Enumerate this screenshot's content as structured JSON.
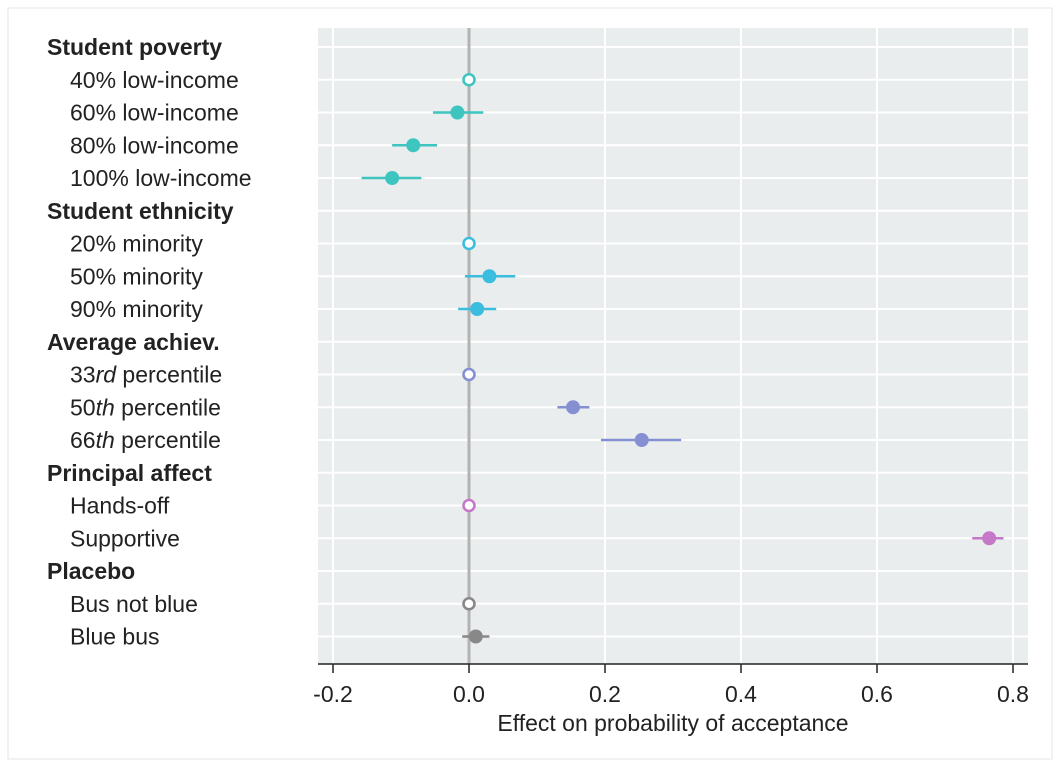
{
  "chart_data": {
    "type": "scatter",
    "xlabel": "Effect on probability of acceptance",
    "xlim": [
      -0.225,
      0.82
    ],
    "xticks": [
      "-0.2",
      "0.0",
      "0.2",
      "0.4",
      "0.6",
      "0.8"
    ],
    "xtick_values": [
      -0.2,
      0,
      0.2,
      0.4,
      0.6,
      0.8
    ],
    "grid": true,
    "reference_line": 0,
    "rows": [
      {
        "kind": "group",
        "label": "Student poverty"
      },
      {
        "kind": "item",
        "label": "40% low-income",
        "estimate": 0.0,
        "ci": [
          0.0,
          0.0
        ],
        "reference": true,
        "color": "#3ec5c0"
      },
      {
        "kind": "item",
        "label": "60% low-income",
        "estimate": -0.017,
        "ci": [
          -0.053,
          0.021
        ],
        "reference": false,
        "color": "#3ec5c0"
      },
      {
        "kind": "item",
        "label": "80% low-income",
        "estimate": -0.082,
        "ci": [
          -0.113,
          -0.047
        ],
        "reference": false,
        "color": "#3ec5c0"
      },
      {
        "kind": "item",
        "label": "100% low-income",
        "estimate": -0.113,
        "ci": [
          -0.158,
          -0.07
        ],
        "reference": false,
        "color": "#3ec5c0"
      },
      {
        "kind": "group",
        "label": "Student ethnicity"
      },
      {
        "kind": "item",
        "label": "20% minority",
        "estimate": 0.0,
        "ci": [
          0.0,
          0.0
        ],
        "reference": true,
        "color": "#3bbde0"
      },
      {
        "kind": "item",
        "label": "50% minority",
        "estimate": 0.03,
        "ci": [
          -0.006,
          0.068
        ],
        "reference": false,
        "color": "#3bbde0"
      },
      {
        "kind": "item",
        "label": "90% minority",
        "estimate": 0.012,
        "ci": [
          -0.016,
          0.04
        ],
        "reference": false,
        "color": "#3bbde0"
      },
      {
        "kind": "group",
        "label": "Average achiev."
      },
      {
        "kind": "item",
        "label_prefix": "33",
        "label_ital": "rd",
        "label_suffix": " percentile",
        "estimate": 0.0,
        "ci": [
          0.0,
          0.0
        ],
        "reference": true,
        "color": "#8590d3"
      },
      {
        "kind": "item",
        "label_prefix": "50",
        "label_ital": "th",
        "label_suffix": " percentile",
        "estimate": 0.153,
        "ci": [
          0.13,
          0.177
        ],
        "reference": false,
        "color": "#8590d3"
      },
      {
        "kind": "item",
        "label_prefix": "66",
        "label_ital": "th",
        "label_suffix": " percentile",
        "estimate": 0.254,
        "ci": [
          0.194,
          0.312
        ],
        "reference": false,
        "color": "#8590d3"
      },
      {
        "kind": "group",
        "label": "Principal affect"
      },
      {
        "kind": "item",
        "label": "Hands-off",
        "estimate": 0.0,
        "ci": [
          0.0,
          0.0
        ],
        "reference": true,
        "color": "#c678c8"
      },
      {
        "kind": "item",
        "label": "Supportive",
        "estimate": 0.765,
        "ci": [
          0.74,
          0.786
        ],
        "reference": false,
        "color": "#c678c8"
      },
      {
        "kind": "group",
        "label": "Placebo"
      },
      {
        "kind": "item",
        "label": "Bus not blue",
        "estimate": 0.0,
        "ci": [
          0.0,
          0.0
        ],
        "reference": true,
        "color": "#888888"
      },
      {
        "kind": "item",
        "label": "Blue bus",
        "estimate": 0.01,
        "ci": [
          -0.01,
          0.03
        ],
        "reference": false,
        "color": "#888888"
      }
    ]
  }
}
